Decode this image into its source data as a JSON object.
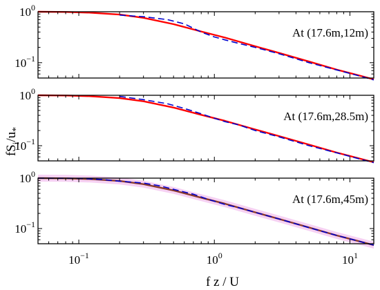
{
  "chart_data": {
    "type": "line",
    "xlabel": "f z / U",
    "ylabel": "fS_i/u_*",
    "xscale": "log",
    "yscale": "log",
    "xlim": [
      0.05,
      15
    ],
    "ylim": [
      0.05,
      1.0
    ],
    "x_ticks": [
      {
        "value": 0.1,
        "base": "10",
        "exp": "−1"
      },
      {
        "value": 1,
        "base": "10",
        "exp": "0"
      },
      {
        "value": 10,
        "base": "10",
        "exp": "1"
      }
    ],
    "y_ticks": [
      {
        "value": 0.1,
        "base": "10",
        "exp": "−1"
      },
      {
        "value": 1,
        "base": "10",
        "exp": "0"
      }
    ],
    "colors": {
      "model": "#ff0000",
      "measured": "#0000cc",
      "band": "#f4c6f0",
      "model_dark": "#8b3a2a"
    },
    "panels": [
      {
        "annotation": "At (17.6m,12m)",
        "model_color": "#ff0000",
        "series": [
          {
            "style": "solid",
            "x": [
              0.05,
              0.08,
              0.12,
              0.2,
              0.3,
              0.5,
              0.8,
              1.2,
              2,
              3,
              5,
              8,
              12,
              15
            ],
            "y": [
              1.0,
              0.99,
              0.96,
              0.88,
              0.76,
              0.57,
              0.41,
              0.31,
              0.21,
              0.155,
              0.105,
              0.073,
              0.055,
              0.047
            ]
          },
          {
            "style": "dashed",
            "x": [
              0.2,
              0.3,
              0.45,
              0.6,
              0.8,
              1.0,
              1.2,
              1.5,
              2,
              3,
              5,
              8,
              12,
              15
            ],
            "y": [
              0.86,
              0.8,
              0.7,
              0.58,
              0.4,
              0.32,
              0.28,
              0.24,
              0.2,
              0.15,
              0.1,
              0.072,
              0.054,
              0.046
            ]
          }
        ]
      },
      {
        "annotation": "At (17.6m,28.5m)",
        "model_color": "#ff0000",
        "series": [
          {
            "style": "solid",
            "x": [
              0.05,
              0.08,
              0.12,
              0.2,
              0.3,
              0.5,
              0.8,
              1.2,
              2,
              3,
              5,
              8,
              12,
              15
            ],
            "y": [
              1.0,
              0.99,
              0.96,
              0.88,
              0.76,
              0.57,
              0.41,
              0.31,
              0.21,
              0.155,
              0.105,
              0.073,
              0.055,
              0.047
            ]
          },
          {
            "style": "dashed",
            "x": [
              0.2,
              0.3,
              0.45,
              0.6,
              0.8,
              1.0,
              1.2,
              1.5,
              2,
              3,
              5,
              8,
              12,
              15
            ],
            "y": [
              0.95,
              0.82,
              0.68,
              0.55,
              0.43,
              0.35,
              0.3,
              0.26,
              0.2,
              0.15,
              0.1,
              0.072,
              0.054,
              0.046
            ]
          }
        ]
      },
      {
        "annotation": "At (17.6m,45m)",
        "model_color": "#8b3a2a",
        "band": true,
        "series": [
          {
            "style": "solid",
            "x": [
              0.05,
              0.08,
              0.12,
              0.2,
              0.3,
              0.5,
              0.8,
              1.2,
              2,
              3,
              5,
              8,
              12,
              15
            ],
            "y": [
              1.0,
              0.99,
              0.96,
              0.88,
              0.76,
              0.57,
              0.41,
              0.31,
              0.21,
              0.155,
              0.105,
              0.073,
              0.055,
              0.047
            ]
          },
          {
            "style": "dashed",
            "x": [
              0.05,
              0.1,
              0.15,
              0.2,
              0.3,
              0.4,
              0.5,
              0.7,
              0.9,
              1.2,
              1.5,
              2,
              3,
              5,
              8,
              12,
              15
            ],
            "y": [
              1.0,
              0.99,
              0.94,
              0.87,
              0.8,
              0.7,
              0.6,
              0.48,
              0.38,
              0.3,
              0.26,
              0.21,
              0.155,
              0.104,
              0.073,
              0.055,
              0.047
            ]
          }
        ]
      }
    ]
  }
}
